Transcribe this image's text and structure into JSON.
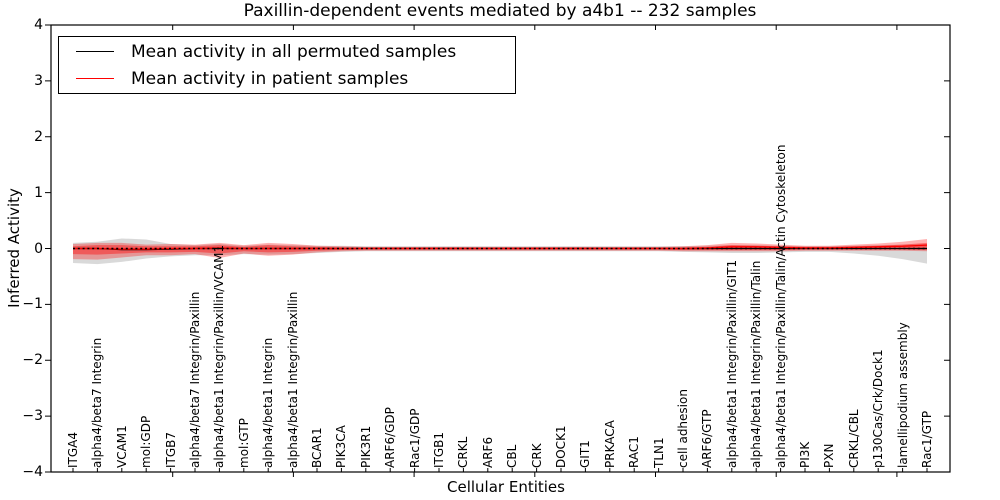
{
  "title": "Paxillin-dependent events mediated by a4b1 -- 232 samples",
  "legend": {
    "items": [
      {
        "label": "Mean activity in all permuted samples",
        "color": "#000000"
      },
      {
        "label": "Mean activity in patient samples",
        "color": "#ff0000"
      }
    ],
    "position": "upper left"
  },
  "chart_data": {
    "type": "line",
    "title": "Paxillin-dependent events mediated by a4b1 -- 232 samples",
    "xlabel": "Cellular Entities",
    "ylabel": "Inferred Activity",
    "ylim": [
      -4,
      4
    ],
    "yticks": [
      4,
      3,
      2,
      1,
      0,
      -1,
      -2,
      -3,
      -4
    ],
    "ytick_labels": [
      "4",
      "3",
      "2",
      "1",
      "0",
      "−1",
      "−2",
      "−3",
      "−4"
    ],
    "grid": false,
    "legend_position": "upper left",
    "zero_line": {
      "y": 0,
      "style": "dotted",
      "color": "#000000"
    },
    "categories": [
      "ITGA4",
      "alpha4/beta7 Integrin",
      "VCAM1",
      "mol:GDP",
      "ITGB7",
      "alpha4/beta7 Integrin/Paxillin",
      "alpha4/beta1 Integrin/Paxillin/VCAM1",
      "mol:GTP",
      "alpha4/beta1 Integrin",
      "alpha4/beta1 Integrin/Paxillin",
      "BCAR1",
      "PIK3CA",
      "PIK3R1",
      "ARF6/GDP",
      "Rac1/GDP",
      "ITGB1",
      "CRKL",
      "ARF6",
      "CBL",
      "CRK",
      "DOCK1",
      "GIT1",
      "PRKACA",
      "RAC1",
      "TLN1",
      "cell adhesion",
      "ARF6/GTP",
      "alpha4/beta1 Integrin/Paxillin/GIT1",
      "alpha4/beta1 Integrin/Paxillin/Talin",
      "alpha4/beta1 Integrin/Paxillin/Talin/Actin Cytoskeleton",
      "PI3K",
      "PXN",
      "CRKL/CBL",
      "p130Cas/Crk/Dock1",
      "lamellipodium assembly",
      "Rac1/GTP"
    ],
    "series": [
      {
        "name": "Mean activity in all permuted samples",
        "color": "#000000",
        "values": [
          0,
          0,
          -0.02,
          -0.02,
          -0.01,
          0,
          0,
          0,
          0,
          0,
          0,
          0,
          0,
          0,
          0,
          0,
          0,
          0,
          0,
          0,
          0,
          0,
          0,
          0,
          0,
          0,
          0,
          0,
          0,
          0,
          0,
          0,
          0,
          0,
          0,
          0
        ]
      },
      {
        "name": "Mean activity in patient samples",
        "color": "#ff0000",
        "values": [
          0,
          0,
          -0.01,
          -0.01,
          0,
          0,
          0.01,
          0,
          0,
          0,
          0,
          0,
          0,
          0,
          0,
          0,
          0,
          0,
          0,
          0,
          0,
          0,
          0,
          0,
          0,
          0,
          0.01,
          0.03,
          0.03,
          0.02,
          0.01,
          0.01,
          0.02,
          0.03,
          0.04,
          0.06
        ]
      }
    ],
    "bands": [
      {
        "name": "permuted-samples-range",
        "color": "#808080",
        "opacity": 0.3,
        "upper": [
          0.1,
          0.12,
          0.18,
          0.16,
          0.08,
          0.06,
          0.08,
          0.05,
          0.07,
          0.06,
          0.05,
          0.05,
          0.04,
          0.04,
          0.04,
          0.04,
          0.04,
          0.04,
          0.04,
          0.04,
          0.04,
          0.04,
          0.04,
          0.04,
          0.04,
          0.04,
          0.05,
          0.06,
          0.06,
          0.05,
          0.04,
          0.04,
          0.05,
          0.06,
          0.07,
          0.08
        ],
        "lower": [
          -0.26,
          -0.28,
          -0.24,
          -0.18,
          -0.14,
          -0.12,
          -0.12,
          -0.1,
          -0.11,
          -0.1,
          -0.08,
          -0.06,
          -0.05,
          -0.05,
          -0.05,
          -0.05,
          -0.05,
          -0.05,
          -0.05,
          -0.05,
          -0.05,
          -0.05,
          -0.05,
          -0.05,
          -0.05,
          -0.06,
          -0.07,
          -0.08,
          -0.08,
          -0.07,
          -0.06,
          -0.06,
          -0.09,
          -0.13,
          -0.19,
          -0.27
        ]
      },
      {
        "name": "patient-samples-range-outer",
        "color": "#ff0000",
        "opacity": 0.3,
        "upper": [
          0.08,
          0.1,
          0.1,
          0.07,
          0.08,
          0.07,
          0.1,
          0.06,
          0.1,
          0.08,
          0.05,
          0.04,
          0.03,
          0.03,
          0.03,
          0.03,
          0.03,
          0.03,
          0.03,
          0.03,
          0.03,
          0.03,
          0.03,
          0.03,
          0.03,
          0.04,
          0.06,
          0.1,
          0.09,
          0.07,
          0.05,
          0.05,
          0.07,
          0.09,
          0.12,
          0.17
        ],
        "lower": [
          -0.19,
          -0.2,
          -0.16,
          -0.12,
          -0.12,
          -0.1,
          -0.17,
          -0.09,
          -0.13,
          -0.11,
          -0.07,
          -0.05,
          -0.04,
          -0.04,
          -0.04,
          -0.04,
          -0.04,
          -0.04,
          -0.04,
          -0.04,
          -0.04,
          -0.04,
          -0.04,
          -0.04,
          -0.04,
          -0.05,
          -0.05,
          -0.05,
          -0.05,
          -0.05,
          -0.04,
          -0.04,
          -0.04,
          -0.04,
          -0.04,
          -0.05
        ]
      },
      {
        "name": "patient-samples-range-inner",
        "color": "#ff0000",
        "opacity": 0.4,
        "upper": [
          0.04,
          0.06,
          0.06,
          0.04,
          0.04,
          0.04,
          0.06,
          0.03,
          0.06,
          0.04,
          0.03,
          0.02,
          0.02,
          0.02,
          0.02,
          0.02,
          0.02,
          0.02,
          0.02,
          0.02,
          0.02,
          0.02,
          0.02,
          0.02,
          0.02,
          0.02,
          0.03,
          0.06,
          0.05,
          0.04,
          0.03,
          0.03,
          0.04,
          0.05,
          0.07,
          0.1
        ],
        "lower": [
          -0.1,
          -0.11,
          -0.09,
          -0.07,
          -0.07,
          -0.06,
          -0.09,
          -0.05,
          -0.07,
          -0.06,
          -0.04,
          -0.03,
          -0.02,
          -0.02,
          -0.02,
          -0.02,
          -0.02,
          -0.02,
          -0.02,
          -0.02,
          -0.02,
          -0.02,
          -0.02,
          -0.02,
          -0.02,
          -0.03,
          -0.03,
          -0.03,
          -0.03,
          -0.03,
          -0.02,
          -0.02,
          -0.02,
          -0.02,
          -0.02,
          -0.03
        ]
      }
    ]
  }
}
